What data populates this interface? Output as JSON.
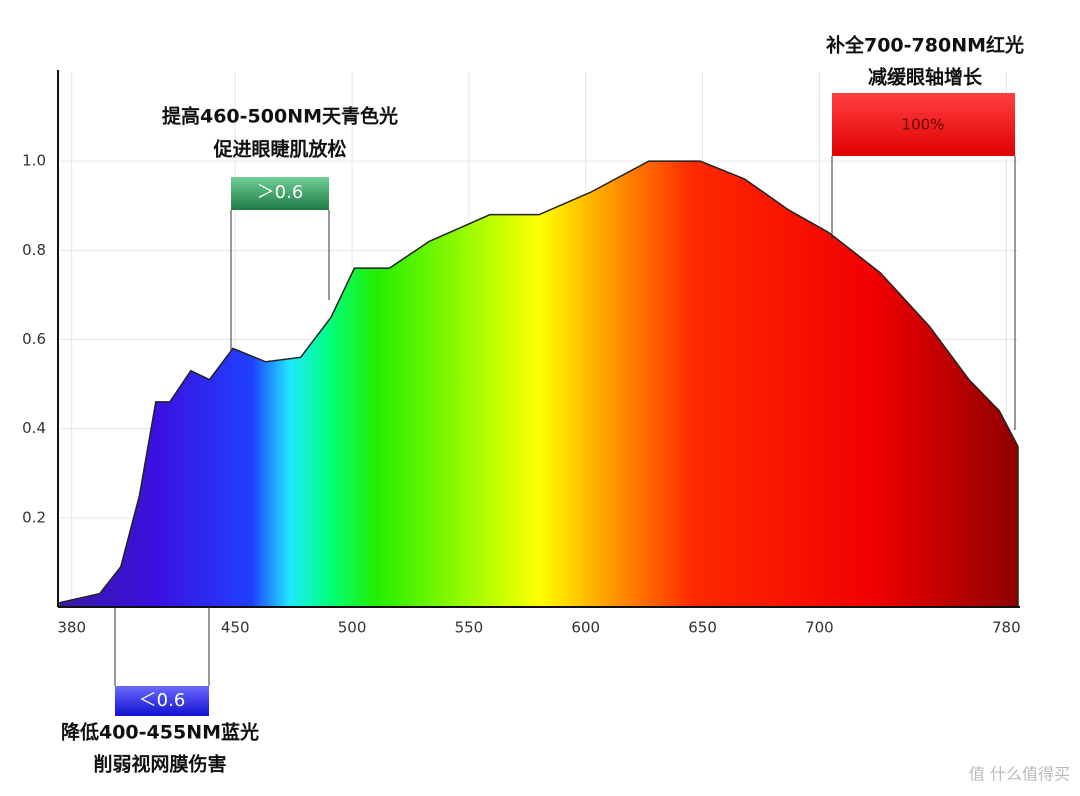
{
  "chart_data": {
    "type": "area",
    "x": [
      375,
      392,
      401,
      409,
      416,
      422,
      431,
      439,
      449,
      463,
      478,
      491,
      501,
      516,
      533,
      559,
      580,
      602,
      627,
      649,
      668,
      687,
      704,
      726,
      747,
      764,
      777,
      785
    ],
    "values": [
      0.01,
      0.03,
      0.09,
      0.25,
      0.46,
      0.46,
      0.53,
      0.51,
      0.58,
      0.55,
      0.56,
      0.65,
      0.76,
      0.76,
      0.82,
      0.88,
      0.88,
      0.93,
      1.0,
      1.0,
      0.96,
      0.89,
      0.84,
      0.75,
      0.63,
      0.51,
      0.44,
      0.36
    ],
    "xlim": [
      375,
      785
    ],
    "ylim": [
      0,
      1.2
    ],
    "xticks": [
      380,
      450,
      500,
      550,
      600,
      650,
      700,
      780
    ],
    "yticks": [
      0.2,
      0.4,
      0.6,
      {
        "value": 1,
        "label": "1.0"
      },
      0.8
    ],
    "grid": true,
    "annotations": {
      "cyan": {
        "line1": "提高460-500NM天青色光",
        "line2": "促进眼睫肌放松",
        "badge": "＞0.6"
      },
      "red": {
        "line1": "补全700-780NM红光",
        "line2": "减缓眼轴增长",
        "badge": "100%"
      },
      "blue": {
        "line1": "降低400-455NM蓝光",
        "line2": "削弱视网膜伤害",
        "badge": "＜0.6"
      }
    },
    "watermark": "值 什么值得买"
  }
}
